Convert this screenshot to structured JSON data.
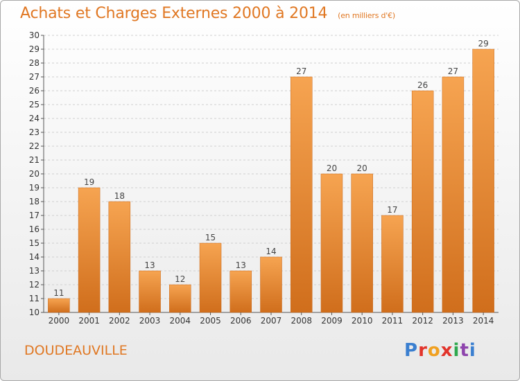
{
  "header": {
    "title": "Achats et Charges Externes 2000 à 2014",
    "subtitle": "(en milliers d'€)"
  },
  "footer": {
    "commune": "DOUDEAUVILLE",
    "logo": {
      "letters": [
        "P",
        "r",
        "o",
        "x",
        "i",
        "t",
        "i"
      ]
    }
  },
  "colors": {
    "title": "#e07722",
    "bar_top": "#f6a451",
    "bar_bottom": "#d06e1c",
    "grid": "#cfcfcf"
  },
  "chart_data": {
    "type": "bar",
    "title": "Achats et Charges Externes 2000 à 2014",
    "subtitle": "(en milliers d'€)",
    "xlabel": "",
    "ylabel": "",
    "categories": [
      "2000",
      "2001",
      "2002",
      "2003",
      "2004",
      "2005",
      "2006",
      "2007",
      "2008",
      "2009",
      "2010",
      "2011",
      "2012",
      "2013",
      "2014"
    ],
    "values": [
      11,
      19,
      18,
      13,
      12,
      15,
      13,
      14,
      27,
      20,
      20,
      17,
      26,
      27,
      29
    ],
    "ylim": [
      10,
      30
    ],
    "yticks": [
      10,
      11,
      12,
      13,
      14,
      15,
      16,
      17,
      18,
      19,
      20,
      21,
      22,
      23,
      24,
      25,
      26,
      27,
      28,
      29,
      30
    ],
    "grid": true,
    "data_labels": true
  }
}
